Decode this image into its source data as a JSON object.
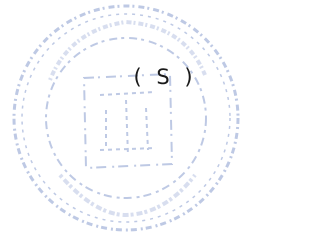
{
  "stamp": {
    "mark": "( S )"
  }
}
